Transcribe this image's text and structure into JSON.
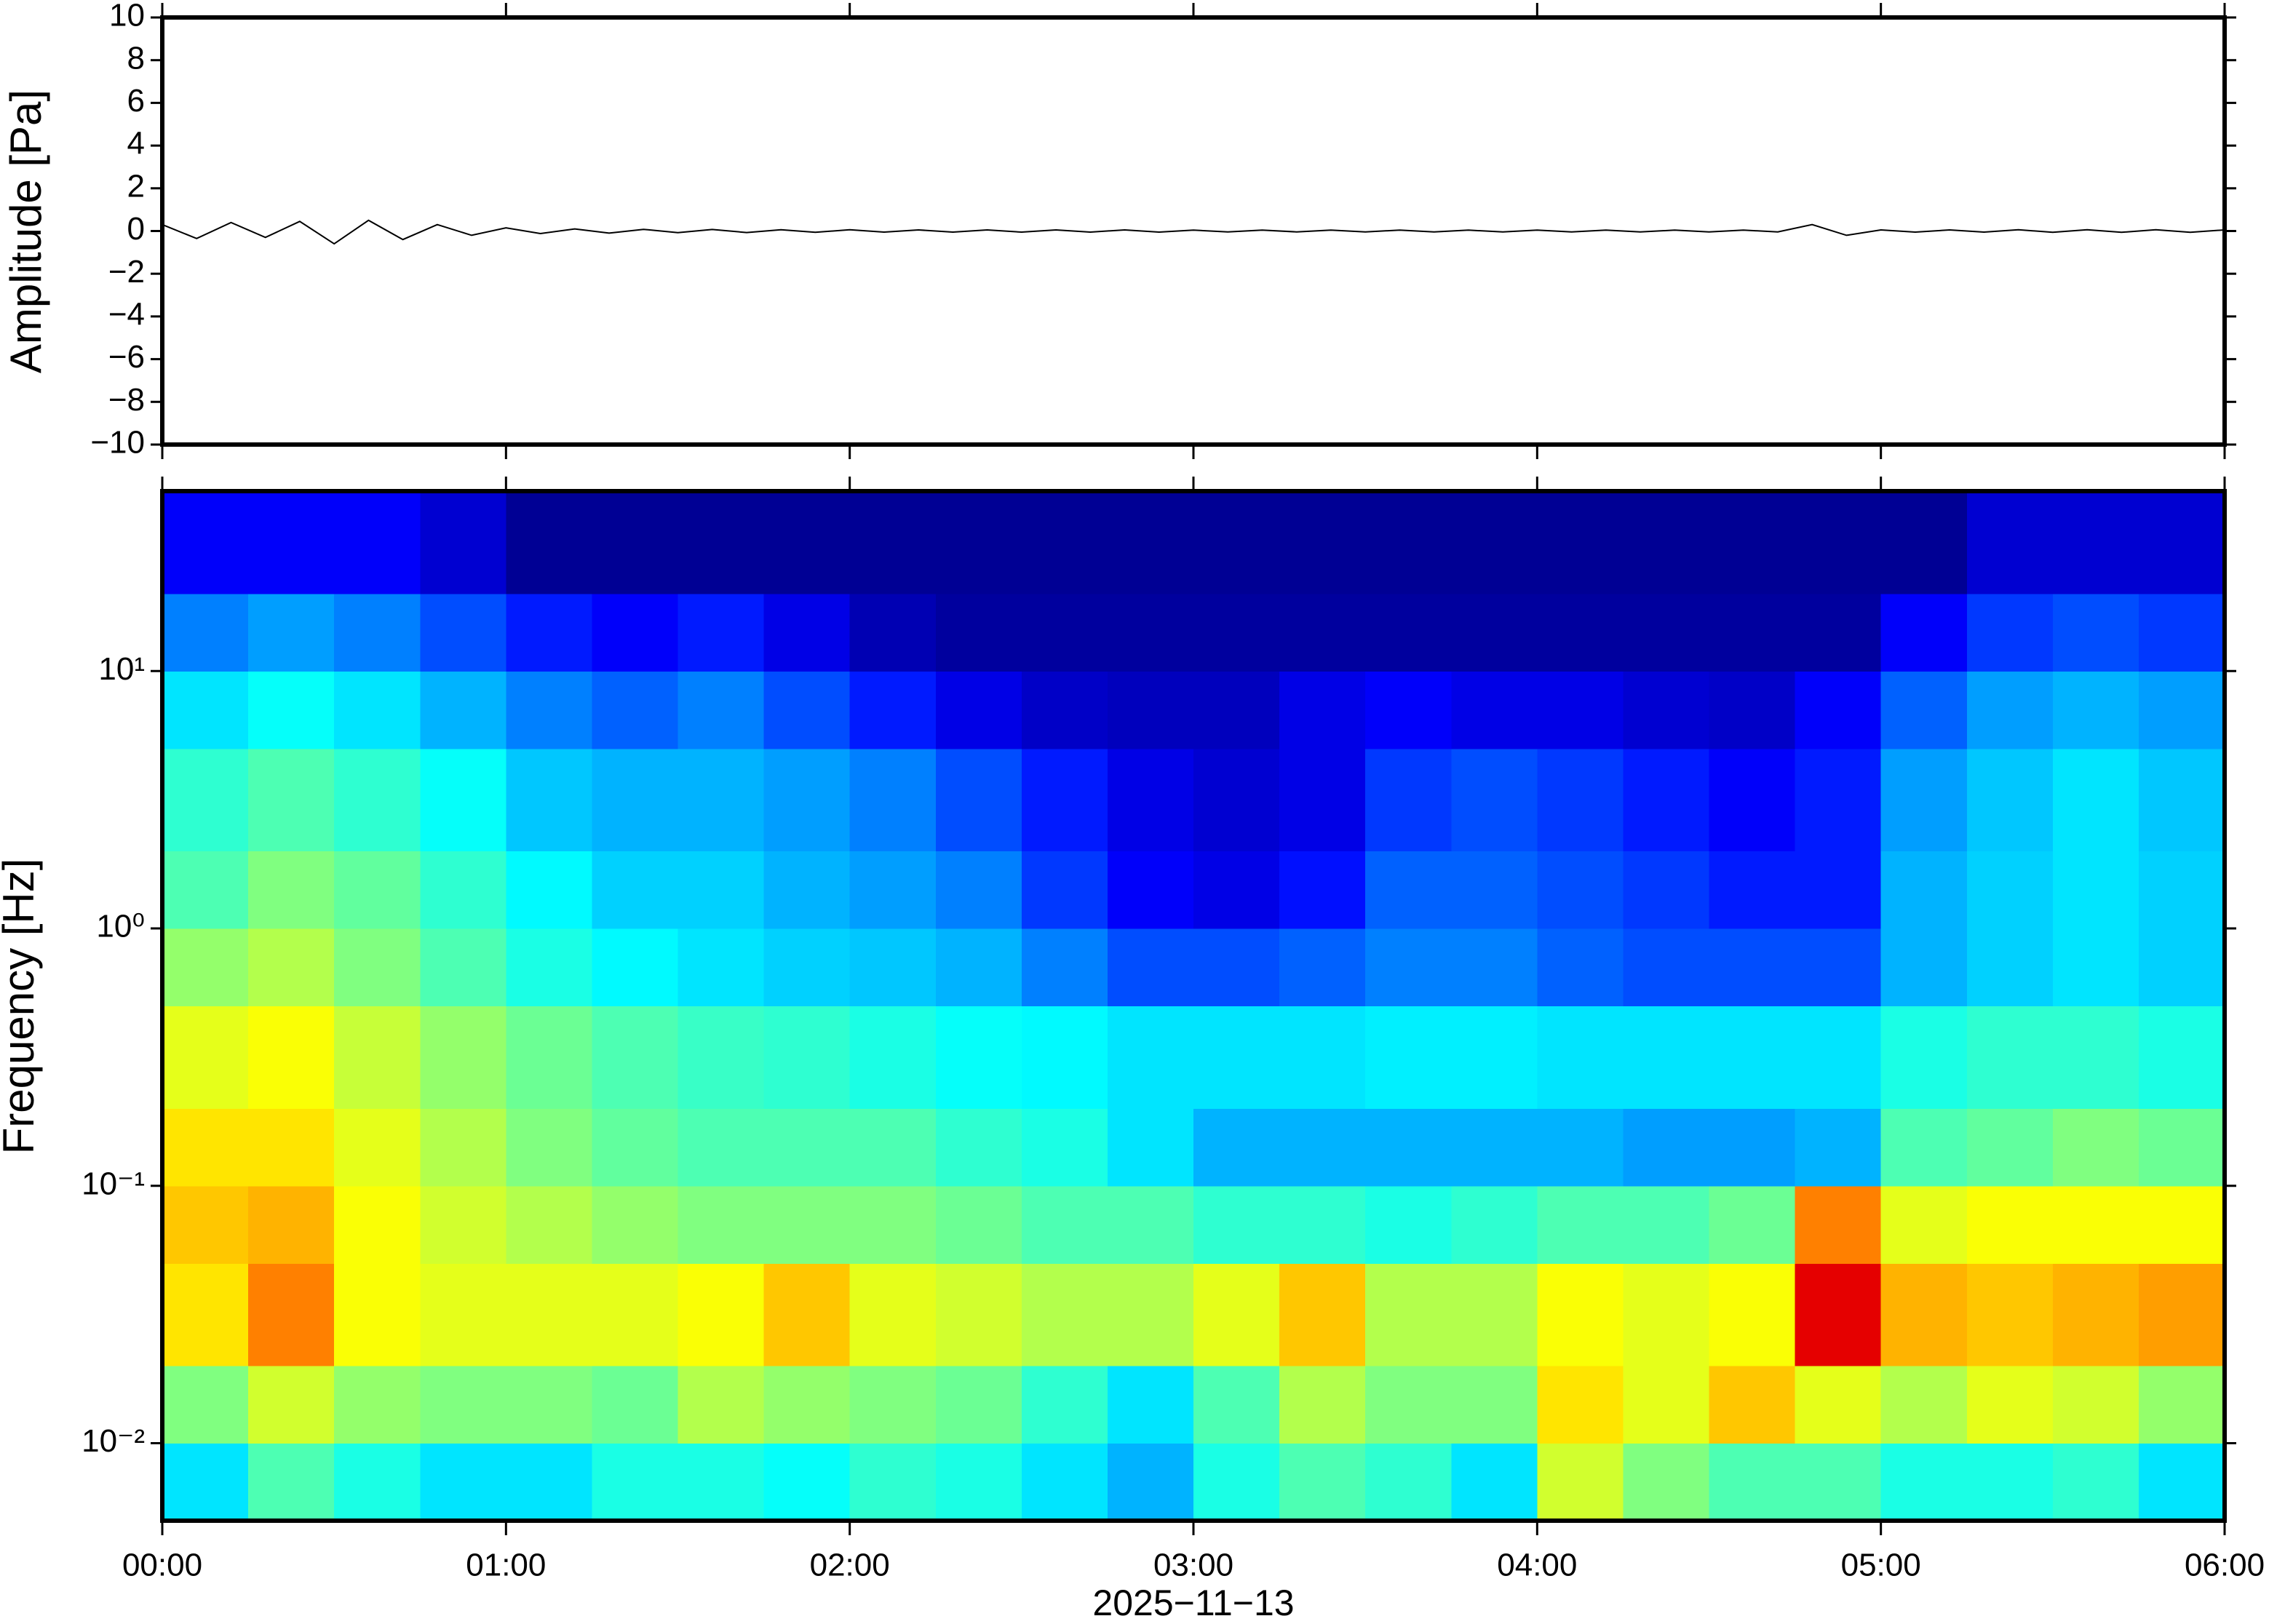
{
  "chart_data": [
    {
      "type": "line",
      "ylabel": "Amplitude [Pa]",
      "color": "#000000",
      "xlim": [
        0,
        6
      ],
      "xticks": [
        0,
        1,
        2,
        3,
        4,
        5,
        6
      ],
      "ylim": [
        -10,
        10
      ],
      "yticks": [
        {
          "value": -10,
          "label": "−10"
        },
        {
          "value": -8,
          "label": "−8"
        },
        {
          "value": -6,
          "label": "−6"
        },
        {
          "value": -4,
          "label": "−4"
        },
        {
          "value": -2,
          "label": "−2"
        },
        0,
        2,
        4,
        6,
        8,
        10
      ],
      "x": [
        0,
        0.1,
        0.2,
        0.3,
        0.4,
        0.5,
        0.6,
        0.7,
        0.8,
        0.9,
        1,
        1.1,
        1.2,
        1.3,
        1.4,
        1.5,
        1.6,
        1.7,
        1.8,
        1.9,
        2,
        2.1,
        2.2,
        2.3,
        2.4,
        2.5,
        2.6,
        2.7,
        2.8,
        2.9,
        3,
        3.1,
        3.2,
        3.3,
        3.4,
        3.5,
        3.6,
        3.7,
        3.8,
        3.9,
        4,
        4.1,
        4.2,
        4.3,
        4.4,
        4.5,
        4.6,
        4.7,
        4.8,
        4.9,
        5,
        5.1,
        5.2,
        5.3,
        5.4,
        5.5,
        5.6,
        5.7,
        5.8,
        5.9,
        6
      ],
      "values": [
        0.3,
        -0.35,
        0.4,
        -0.3,
        0.45,
        -0.6,
        0.5,
        -0.4,
        0.3,
        -0.2,
        0.15,
        -0.12,
        0.1,
        -0.1,
        0.08,
        -0.08,
        0.07,
        -0.07,
        0.06,
        -0.06,
        0.06,
        -0.05,
        0.05,
        -0.05,
        0.05,
        -0.05,
        0.05,
        -0.05,
        0.05,
        -0.05,
        0.04,
        -0.04,
        0.04,
        -0.04,
        0.04,
        -0.04,
        0.04,
        -0.04,
        0.04,
        -0.04,
        0.04,
        -0.04,
        0.04,
        -0.04,
        0.04,
        -0.04,
        0.04,
        -0.04,
        0.3,
        -0.2,
        0.05,
        -0.05,
        0.05,
        -0.05,
        0.06,
        -0.06,
        0.06,
        -0.06,
        0.06,
        -0.06,
        0.05
      ]
    },
    {
      "type": "heatmap",
      "ylabel": "Frequency [Hz]",
      "xlabel": "2025−11−13",
      "colormap": "jet",
      "ylog": true,
      "xlim": [
        0,
        6
      ],
      "xticks": [
        {
          "value": 0,
          "label": "00:00"
        },
        {
          "value": 1,
          "label": "01:00"
        },
        {
          "value": 2,
          "label": "02:00"
        },
        {
          "value": 3,
          "label": "03:00"
        },
        {
          "value": 4,
          "label": "04:00"
        },
        {
          "value": 5,
          "label": "05:00"
        },
        {
          "value": 6,
          "label": "06:00"
        }
      ],
      "ylim": [
        0.005,
        50
      ],
      "yticks": [
        {
          "value": 0.01,
          "label": "10⁻²"
        },
        {
          "value": 0.1,
          "label": "10⁻¹"
        },
        {
          "value": 1,
          "label": "10⁰"
        },
        {
          "value": 10,
          "label": "10¹"
        }
      ],
      "xbins": [
        0,
        0.25,
        0.5,
        0.75,
        1,
        1.25,
        1.5,
        1.75,
        2,
        2.25,
        2.5,
        2.75,
        3,
        3.25,
        3.5,
        3.75,
        4,
        4.25,
        4.5,
        4.75,
        5,
        5.25,
        5.5,
        5.75,
        6
      ],
      "ybins": [
        0.005,
        0.01,
        0.02,
        0.05,
        0.1,
        0.2,
        0.5,
        1,
        2,
        5,
        10,
        20,
        50
      ],
      "values": [
        [
          0.35,
          0.45,
          0.4,
          0.35,
          0.35,
          0.4,
          0.4,
          0.38,
          0.42,
          0.4,
          0.35,
          0.3,
          0.4,
          0.45,
          0.42,
          0.35,
          0.58,
          0.5,
          0.45,
          0.45,
          0.4,
          0.4,
          0.42,
          0.35
        ],
        [
          0.5,
          0.58,
          0.52,
          0.5,
          0.5,
          0.48,
          0.55,
          0.52,
          0.5,
          0.48,
          0.42,
          0.35,
          0.45,
          0.55,
          0.5,
          0.5,
          0.65,
          0.6,
          0.68,
          0.6,
          0.55,
          0.6,
          0.58,
          0.52
        ],
        [
          0.65,
          0.75,
          0.62,
          0.6,
          0.6,
          0.6,
          0.62,
          0.68,
          0.6,
          0.58,
          0.55,
          0.55,
          0.6,
          0.68,
          0.55,
          0.55,
          0.62,
          0.6,
          0.62,
          0.9,
          0.7,
          0.68,
          0.7,
          0.72
        ],
        [
          0.68,
          0.7,
          0.62,
          0.58,
          0.55,
          0.52,
          0.5,
          0.5,
          0.5,
          0.48,
          0.45,
          0.45,
          0.42,
          0.42,
          0.4,
          0.42,
          0.45,
          0.45,
          0.48,
          0.75,
          0.6,
          0.62,
          0.62,
          0.62
        ],
        [
          0.65,
          0.65,
          0.6,
          0.55,
          0.5,
          0.47,
          0.45,
          0.45,
          0.45,
          0.42,
          0.4,
          0.35,
          0.3,
          0.3,
          0.3,
          0.3,
          0.3,
          0.28,
          0.28,
          0.3,
          0.45,
          0.47,
          0.5,
          0.48
        ],
        [
          0.6,
          0.62,
          0.57,
          0.52,
          0.48,
          0.45,
          0.43,
          0.42,
          0.4,
          0.38,
          0.37,
          0.35,
          0.35,
          0.35,
          0.36,
          0.36,
          0.35,
          0.35,
          0.35,
          0.35,
          0.4,
          0.42,
          0.42,
          0.4
        ],
        [
          0.52,
          0.55,
          0.5,
          0.45,
          0.4,
          0.37,
          0.35,
          0.33,
          0.32,
          0.3,
          0.25,
          0.2,
          0.2,
          0.22,
          0.25,
          0.25,
          0.22,
          0.2,
          0.2,
          0.2,
          0.3,
          0.33,
          0.35,
          0.33
        ],
        [
          0.45,
          0.5,
          0.47,
          0.42,
          0.37,
          0.33,
          0.33,
          0.3,
          0.28,
          0.25,
          0.18,
          0.12,
          0.1,
          0.14,
          0.22,
          0.22,
          0.2,
          0.18,
          0.15,
          0.15,
          0.3,
          0.33,
          0.35,
          0.33
        ],
        [
          0.42,
          0.45,
          0.42,
          0.38,
          0.32,
          0.3,
          0.3,
          0.28,
          0.25,
          0.2,
          0.15,
          0.1,
          0.08,
          0.1,
          0.18,
          0.2,
          0.18,
          0.15,
          0.12,
          0.15,
          0.28,
          0.32,
          0.35,
          0.32
        ],
        [
          0.35,
          0.38,
          0.35,
          0.3,
          0.25,
          0.22,
          0.25,
          0.2,
          0.15,
          0.1,
          0.07,
          0.06,
          0.06,
          0.1,
          0.12,
          0.1,
          0.1,
          0.08,
          0.07,
          0.12,
          0.22,
          0.28,
          0.3,
          0.28
        ],
        [
          0.25,
          0.28,
          0.25,
          0.2,
          0.15,
          0.12,
          0.15,
          0.1,
          0.05,
          0.03,
          0.03,
          0.03,
          0.03,
          0.03,
          0.03,
          0.03,
          0.03,
          0.03,
          0.03,
          0.03,
          0.12,
          0.18,
          0.2,
          0.18
        ],
        [
          0.12,
          0.12,
          0.12,
          0.08,
          0.02,
          0.02,
          0.02,
          0.02,
          0.02,
          0.02,
          0.02,
          0.02,
          0.02,
          0.02,
          0.02,
          0.02,
          0.02,
          0.02,
          0.02,
          0.02,
          0.02,
          0.08,
          0.08,
          0.08
        ]
      ]
    }
  ]
}
